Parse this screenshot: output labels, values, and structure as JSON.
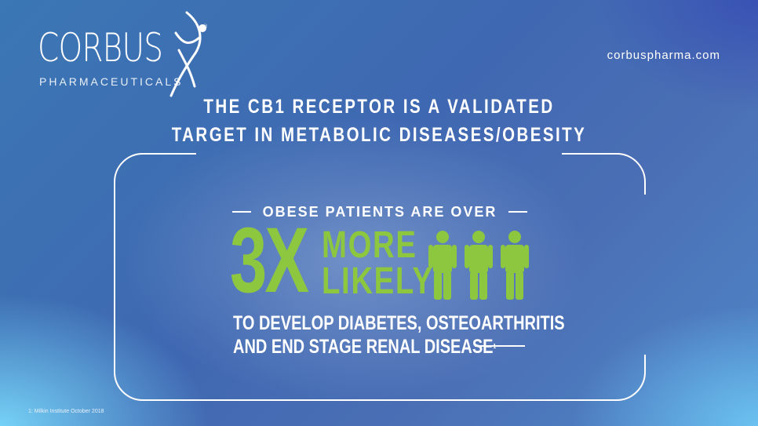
{
  "brand": {
    "name": "CORBUS",
    "subtitle": "PHARMACEUTICALS",
    "registered_mark": "®",
    "website": "corbuspharma.com"
  },
  "headline": {
    "line1": "THE CB1 RECEPTOR IS A VALIDATED",
    "line2": "TARGET IN METABOLIC DISEASES/OBESITY"
  },
  "stat": {
    "kicker": "OBESE PATIENTS ARE OVER",
    "multiplier": "3X",
    "line1": "MORE",
    "line2": "LIKELY",
    "detail_line1": "TO DEVELOP DIABETES, OSTEOARTHRITIS",
    "detail_line2": "AND END STAGE RENAL DISEASE",
    "footnote_ref": "1",
    "people_icon": "person-icon",
    "people_count": 3
  },
  "footnote": "1: Milkin Institute October 2018",
  "colors": {
    "accent_green": "#8dc63f",
    "text": "#ffffff"
  }
}
